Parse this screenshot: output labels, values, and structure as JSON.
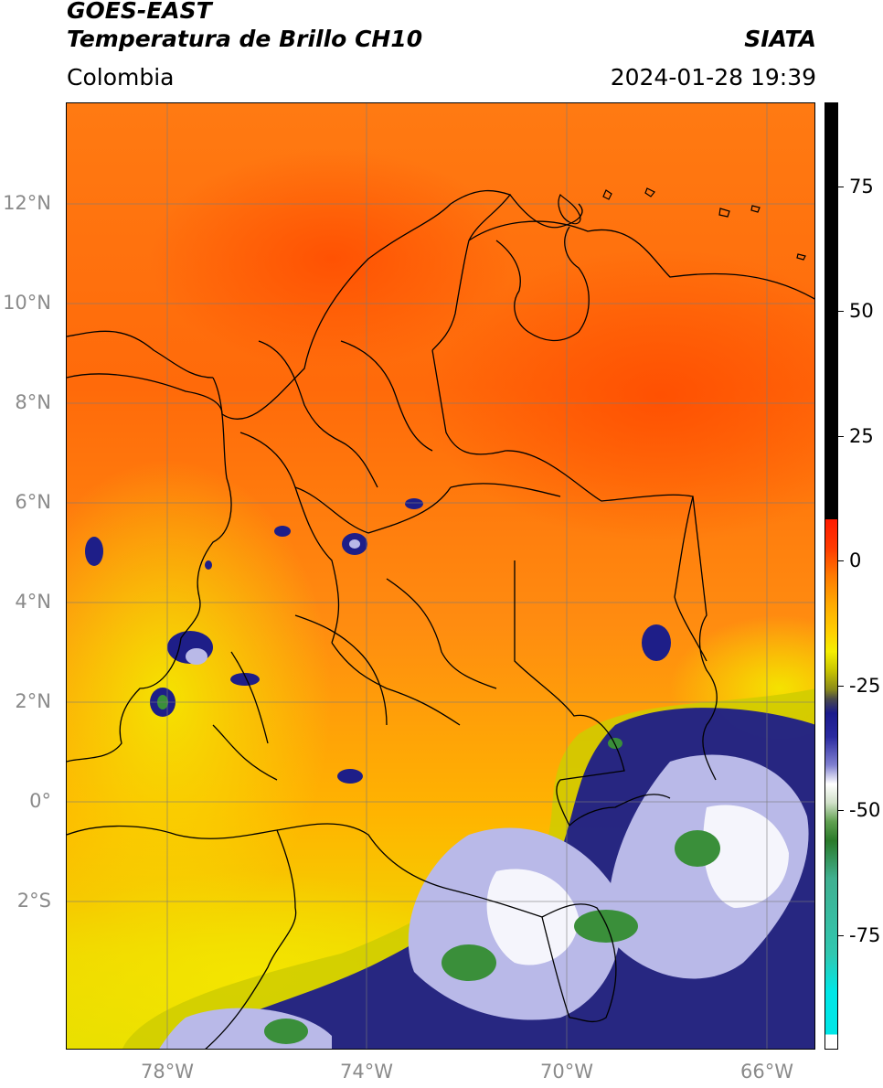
{
  "header": {
    "satellite": "GOES-EAST",
    "product": "Temperatura de Brillo CH10",
    "source": "SIATA",
    "region": "Colombia",
    "datetime": "2024-01-28 19:39"
  },
  "map": {
    "lat_ticks": [
      {
        "label": "12°N",
        "value": 12
      },
      {
        "label": "10°N",
        "value": 10
      },
      {
        "label": "8°N",
        "value": 8
      },
      {
        "label": "6°N",
        "value": 6
      },
      {
        "label": "4°N",
        "value": 4
      },
      {
        "label": "2°N",
        "value": 2
      },
      {
        "label": "0°",
        "value": 0
      },
      {
        "label": "2°S",
        "value": -2
      }
    ],
    "lon_ticks": [
      {
        "label": "78°W",
        "value": -78
      },
      {
        "label": "74°W",
        "value": -74
      },
      {
        "label": "70°W",
        "value": -70
      },
      {
        "label": "66°W",
        "value": -66
      }
    ],
    "extent": {
      "lon_min": -80,
      "lon_max": -65,
      "lat_min": -5,
      "lat_max": 14
    }
  },
  "colorbar": {
    "range": [
      -100,
      90
    ],
    "ticks": [
      {
        "label": "75",
        "value": 75
      },
      {
        "label": "50",
        "value": 50
      },
      {
        "label": "25",
        "value": 25
      },
      {
        "label": "0",
        "value": 0
      },
      {
        "label": "-25",
        "value": -25
      },
      {
        "label": "-50",
        "value": -50
      },
      {
        "label": "-75",
        "value": -75
      }
    ],
    "colors": {
      "warm_top": "#000000",
      "red": "#ff1a00",
      "orange": "#ff8c00",
      "yellow": "#f5ee00",
      "olive": "#9a9a18",
      "navy": "#1a1a8c",
      "white": "#ffffff",
      "green": "#3a8f3a",
      "teal": "#30c8b0",
      "cyan": "#00e6e6"
    }
  }
}
